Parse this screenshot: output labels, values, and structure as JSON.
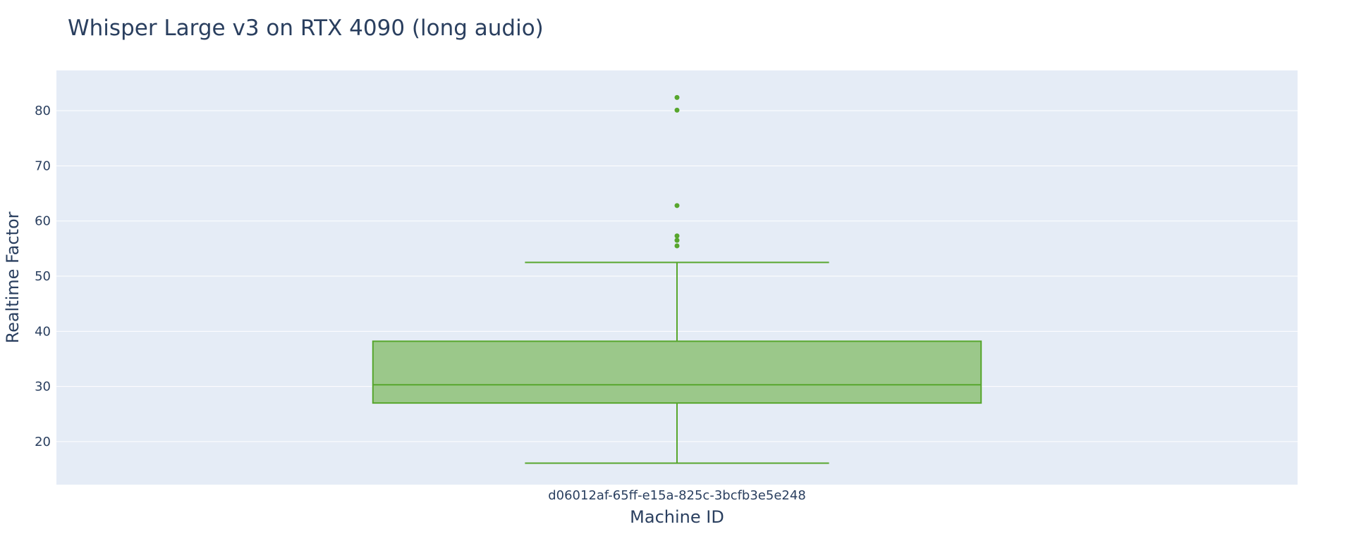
{
  "chart_data": {
    "type": "box",
    "title": "Whisper Large v3 on RTX 4090 (long audio)",
    "xlabel": "Machine ID",
    "ylabel": "Realtime Factor",
    "categories": [
      "d06012af-65ff-e15a-825c-3bcfb3e5e248"
    ],
    "ylim": [
      12.2,
      87.3
    ],
    "yticks": [
      20,
      30,
      40,
      50,
      60,
      70,
      80
    ],
    "grid": true,
    "series": [
      {
        "category": "d06012af-65ff-e15a-825c-3bcfb3e5e248",
        "lower_fence": 16.1,
        "q1": 27.0,
        "median": 30.3,
        "q3": 38.2,
        "upper_fence": 52.5,
        "outliers": [
          55.5,
          56.5,
          57.3,
          62.8,
          80.1,
          82.4
        ]
      }
    ],
    "colors": {
      "box_line": "#57a62d",
      "box_fill": "#9bc88a",
      "plot_bg": "#e5ecf6",
      "grid": "#ffffff",
      "text": "#2a3f5f"
    }
  }
}
